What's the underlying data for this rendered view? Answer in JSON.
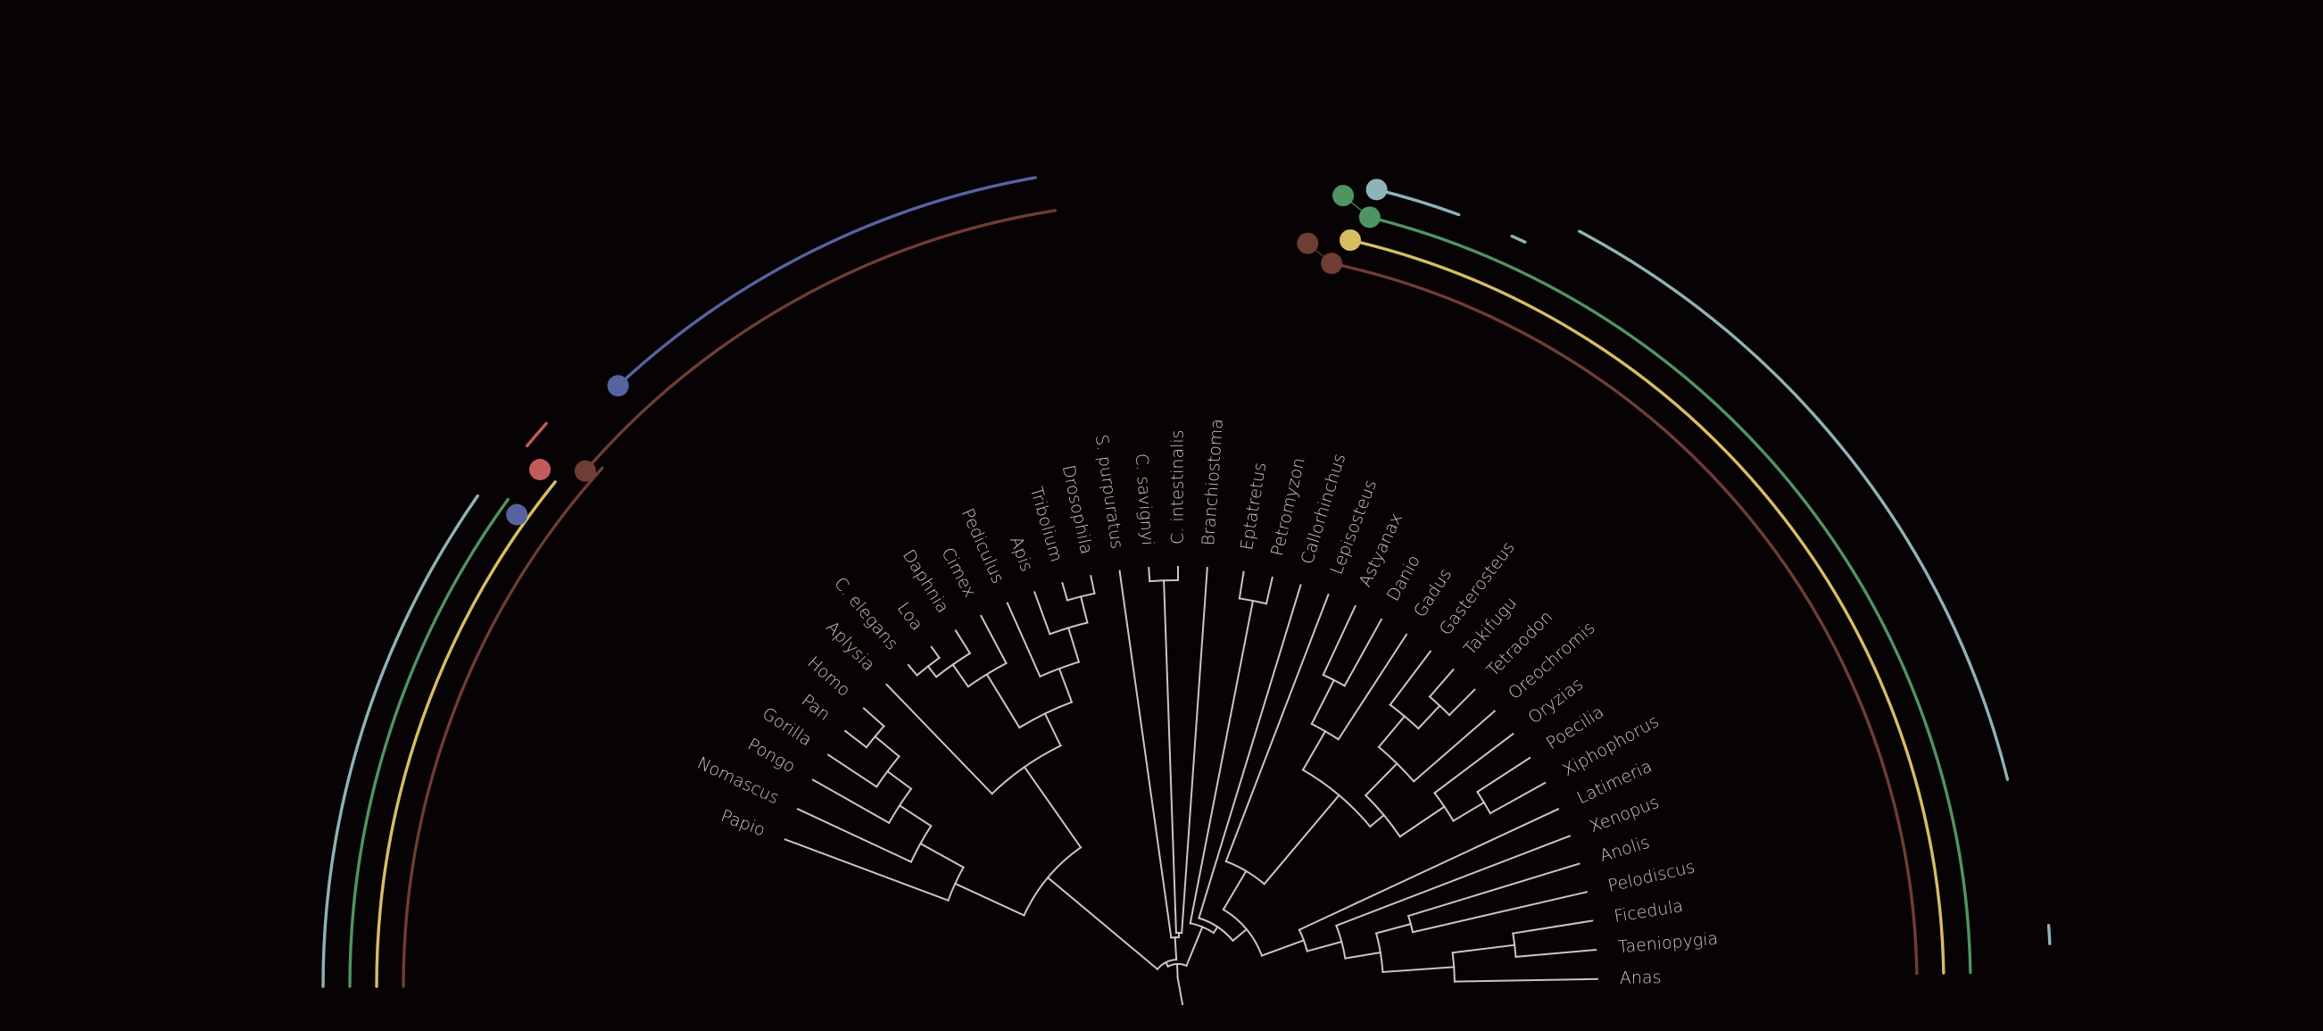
{
  "taxa_left": [
    "Papio",
    "Nomascus",
    "Pongo",
    "Gorilla",
    "Pan",
    "Homo",
    "Aplysia",
    "C. elegans",
    "Loa",
    "Daphnia",
    "Cimex",
    "Pediculus",
    "Apis",
    "Tribolium",
    "Drosophila",
    "S. purpuratus",
    "C. savignyi",
    "C. intestinalis",
    "Branchiostoma"
  ],
  "taxa_right": [
    "Eptatretus",
    "Petromyzon",
    "Callorhinchus",
    "Lepisosteus",
    "Astyanax",
    "Danio",
    "Gadus",
    "Gasterosteus",
    "Takifugu",
    "Tetraodon",
    "Oreochromis",
    "Oryzias",
    "Poecilia",
    "Xiphophorus",
    "Latimeria",
    "Xenopus",
    "Anolis",
    "Pelodiscus",
    "Ficedula",
    "Taeniopygia",
    "Anas"
  ],
  "colors": {
    "background": "#070304",
    "branch": "#c9c6c3",
    "label": "#cdcac7",
    "ring_teal": "#8fb3b7",
    "ring_green": "#4f9463",
    "ring_yellow": "#d8bd63",
    "ring_brown": "#6e3d34",
    "ring_blue": "#5563a0",
    "ring_red": "#c25c5c"
  }
}
